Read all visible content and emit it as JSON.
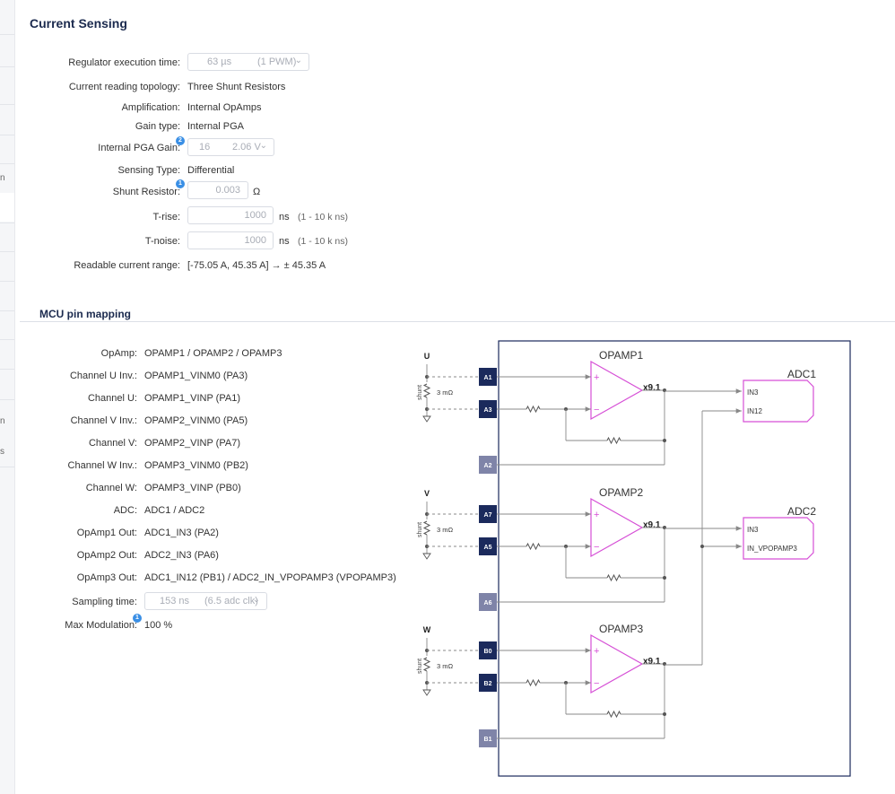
{
  "sidebar_fragments": [
    "n",
    "n",
    "s"
  ],
  "current_sensing": {
    "title": "Current Sensing",
    "regulator_label": "Regulator execution time:",
    "regulator_value": "63 µs",
    "regulator_hint": "(1 PWM)",
    "topology_label": "Current reading topology:",
    "topology_value": "Three Shunt Resistors",
    "amplification_label": "Amplification:",
    "amplification_value": "Internal OpAmps",
    "gain_type_label": "Gain type:",
    "gain_type_value": "Internal PGA",
    "pga_gain_label": "Internal PGA Gain:",
    "pga_gain_badge": "2",
    "pga_gain_value": "16",
    "pga_gain_hint": "2.06 V",
    "sensing_type_label": "Sensing Type:",
    "sensing_type_value": "Differential",
    "shunt_label": "Shunt Resistor:",
    "shunt_badge": "1",
    "shunt_value": "0.003",
    "shunt_unit": "Ω",
    "trise_label": "T-rise:",
    "trise_value": "1000",
    "trise_unit": "ns",
    "trise_hint": "(1 - 10 k ns)",
    "tnoise_label": "T-noise:",
    "tnoise_value": "1000",
    "tnoise_unit": "ns",
    "tnoise_hint": "(1 - 10 k ns)",
    "range_label": "Readable current range:",
    "range_value": "[-75.05 A, 45.35 A] → ± 45.35 A"
  },
  "mcu_pin_mapping": {
    "title": "MCU pin mapping",
    "rows": [
      {
        "label": "OpAmp:",
        "value": "OPAMP1 / OPAMP2 / OPAMP3"
      },
      {
        "label": "Channel U Inv.:",
        "value": "OPAMP1_VINM0 (PA3)"
      },
      {
        "label": "Channel U:",
        "value": "OPAMP1_VINP (PA1)"
      },
      {
        "label": "Channel V Inv.:",
        "value": "OPAMP2_VINM0 (PA5)"
      },
      {
        "label": "Channel V:",
        "value": "OPAMP2_VINP (PA7)"
      },
      {
        "label": "Channel W Inv.:",
        "value": "OPAMP3_VINM0 (PB2)"
      },
      {
        "label": "Channel W:",
        "value": "OPAMP3_VINP (PB0)"
      },
      {
        "label": "ADC:",
        "value": "ADC1 / ADC2"
      },
      {
        "label": "OpAmp1 Out:",
        "value": "ADC1_IN3 (PA2)"
      },
      {
        "label": "OpAmp2 Out:",
        "value": "ADC2_IN3 (PA6)"
      },
      {
        "label": "OpAmp3 Out:",
        "value": "ADC1_IN12 (PB1) / ADC2_IN_VPOPAMP3 (VPOPAMP3)"
      }
    ],
    "sampling_label": "Sampling time:",
    "sampling_value": "153 ns",
    "sampling_hint": "(6.5 adc clk)",
    "modulation_label": "Max Modulation:",
    "modulation_badge": "1",
    "modulation_value": "100 %"
  },
  "diagram": {
    "phases": [
      {
        "name": "U",
        "pins": [
          "A1",
          "A3",
          "A2"
        ],
        "opamp": "OPAMP1",
        "gain": "x9.1",
        "shunt_text": "shunt",
        "shunt_value": "3 mΩ"
      },
      {
        "name": "V",
        "pins": [
          "A7",
          "A5",
          "A6"
        ],
        "opamp": "OPAMP2",
        "gain": "x9.1",
        "shunt_text": "shunt",
        "shunt_value": "3 mΩ"
      },
      {
        "name": "W",
        "pins": [
          "B0",
          "B2",
          "B1"
        ],
        "opamp": "OPAMP3",
        "gain": "x9.1",
        "shunt_text": "shunt",
        "shunt_value": "3 mΩ"
      }
    ],
    "adcs": [
      {
        "name": "ADC1",
        "inputs": [
          "IN3",
          "IN12"
        ]
      },
      {
        "name": "ADC2",
        "inputs": [
          "IN3",
          "IN_VPOPAMP3"
        ]
      }
    ],
    "colors": {
      "frame": "#1b2a5c",
      "pin_dark": "#1b2a5c",
      "pin_light": "#7f84a8",
      "opamp": "#d64fd6",
      "adc": "#d64fd6"
    }
  }
}
